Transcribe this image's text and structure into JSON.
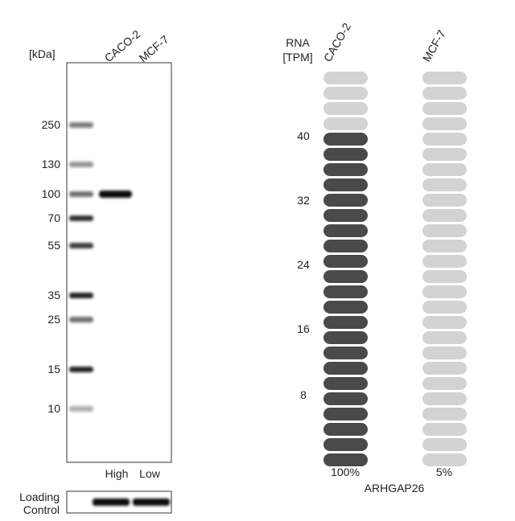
{
  "blot": {
    "unit_label": "[kDa]",
    "lanes": [
      "CACO-2",
      "MCF-7"
    ],
    "markers": [
      "250",
      "130",
      "100",
      "70",
      "55",
      "35",
      "25",
      "15",
      "10"
    ],
    "lane_levels": [
      "High",
      "Low"
    ],
    "loading_control": [
      "Loading",
      "Control"
    ]
  },
  "rna": {
    "axis_label": [
      "RNA",
      "[TPM]"
    ],
    "samples": [
      "CACO-2",
      "MCF-7"
    ],
    "ticks": [
      "40",
      "32",
      "24",
      "16",
      "8"
    ],
    "percentages": [
      "100%",
      "5%"
    ],
    "gene": "ARHGAP26"
  }
}
